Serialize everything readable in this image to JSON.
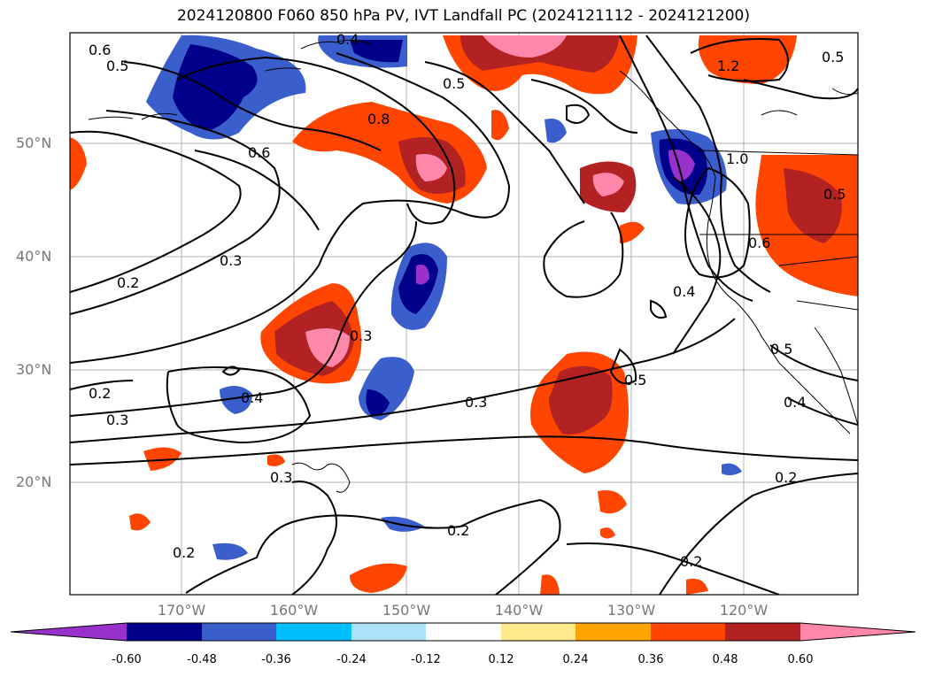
{
  "title": "2024120800 F060 850 hPa PV, IVT Landfall PC (2024121112 - 2024121200)",
  "map": {
    "lat_labels": [
      "50°N",
      "40°N",
      "30°N",
      "20°N"
    ],
    "lon_labels": [
      "170°W",
      "160°W",
      "150°W",
      "140°W",
      "130°W",
      "120°W"
    ],
    "contour_labels": [
      "0.6",
      "0.5",
      "0.8",
      "0.6",
      "0.5",
      "1.2",
      "1.0",
      "0.5",
      "0.6",
      "0.4",
      "0.3",
      "0.2",
      "0.3",
      "0.4",
      "0.3",
      "0.2",
      "0.3",
      "0.3",
      "0.5",
      "0.4",
      "0.5",
      "0.2",
      "0.2",
      "0.2",
      "0.2",
      "0.4",
      "0.5"
    ]
  },
  "colorbar": {
    "ticks": [
      "-0.60",
      "-0.48",
      "-0.36",
      "-0.24",
      "-0.12",
      "0.12",
      "0.24",
      "0.36",
      "0.48",
      "0.60"
    ],
    "colors": [
      "#9932cc",
      "#00008b",
      "#3a5fcd",
      "#00bfff",
      "#aee2fa",
      "#ffffff",
      "#ffe98a",
      "#ffa500",
      "#ff4500",
      "#b22222",
      "#ff88aa"
    ]
  }
}
